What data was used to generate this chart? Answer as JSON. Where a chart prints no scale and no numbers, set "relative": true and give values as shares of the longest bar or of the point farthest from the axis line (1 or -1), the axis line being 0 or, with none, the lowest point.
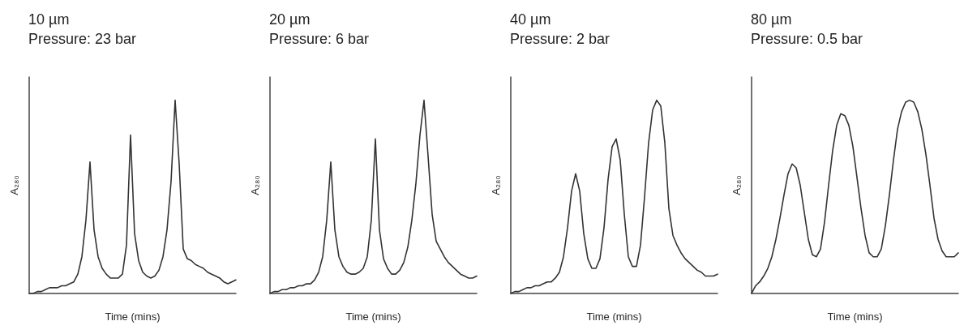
{
  "chart_data": [
    {
      "type": "line",
      "title": "10 µm",
      "subtitle": "Pressure: 23 bar",
      "xlabel": "Time (mins)",
      "ylabel": "A₂₈₀",
      "relative": true,
      "grid": false,
      "line_style": "solid",
      "categories": [
        null,
        null,
        null,
        null,
        null,
        null,
        null,
        null,
        null,
        null,
        null,
        null,
        null,
        null,
        null,
        null,
        null,
        null,
        null,
        null,
        null,
        null,
        null,
        null,
        null,
        null,
        null,
        null,
        null,
        null,
        null,
        null,
        null,
        null,
        null,
        null,
        null,
        null,
        null,
        null,
        null,
        null,
        null,
        null,
        null,
        null,
        null,
        null,
        null,
        null,
        null,
        null
      ],
      "series": [
        {
          "color": "#333333",
          "values": [
            0,
            0,
            0.01,
            0.01,
            0.02,
            0.03,
            0.03,
            0.03,
            0.04,
            0.04,
            0.05,
            0.06,
            0.1,
            0.19,
            0.38,
            0.68,
            0.33,
            0.19,
            0.13,
            0.1,
            0.08,
            0.08,
            0.08,
            0.1,
            0.25,
            0.82,
            0.31,
            0.17,
            0.11,
            0.09,
            0.08,
            0.09,
            0.12,
            0.19,
            0.33,
            0.58,
            1,
            0.67,
            0.23,
            0.18,
            0.17,
            0.15,
            0.14,
            0.13,
            0.11,
            0.1,
            0.09,
            0.08,
            0.06,
            0.05,
            0.06,
            0.07
          ]
        }
      ]
    },
    {
      "type": "line",
      "title": "20 µm",
      "subtitle": "Pressure: 6 bar",
      "xlabel": "Time (mins)",
      "ylabel": "A₂₈₀",
      "relative": true,
      "grid": false,
      "line_style": "solid",
      "categories": [
        null,
        null,
        null,
        null,
        null,
        null,
        null,
        null,
        null,
        null,
        null,
        null,
        null,
        null,
        null,
        null,
        null,
        null,
        null,
        null,
        null,
        null,
        null,
        null,
        null,
        null,
        null,
        null,
        null,
        null,
        null,
        null,
        null,
        null,
        null,
        null,
        null,
        null,
        null,
        null,
        null,
        null,
        null,
        null,
        null,
        null,
        null,
        null,
        null,
        null,
        null,
        null
      ],
      "series": [
        {
          "color": "#333333",
          "values": [
            0,
            0.01,
            0.01,
            0.02,
            0.02,
            0.03,
            0.03,
            0.04,
            0.04,
            0.05,
            0.05,
            0.07,
            0.11,
            0.19,
            0.38,
            0.68,
            0.33,
            0.19,
            0.14,
            0.11,
            0.1,
            0.1,
            0.11,
            0.13,
            0.19,
            0.38,
            0.8,
            0.33,
            0.18,
            0.13,
            0.1,
            0.1,
            0.12,
            0.16,
            0.24,
            0.38,
            0.57,
            0.82,
            1,
            0.71,
            0.41,
            0.27,
            0.23,
            0.19,
            0.16,
            0.14,
            0.12,
            0.1,
            0.09,
            0.08,
            0.08,
            0.09
          ]
        }
      ]
    },
    {
      "type": "line",
      "title": "40 µm",
      "subtitle": "Pressure: 2 bar",
      "xlabel": "Time (mins)",
      "ylabel": "A₂₈₀",
      "relative": true,
      "grid": false,
      "line_style": "solid",
      "categories": [
        null,
        null,
        null,
        null,
        null,
        null,
        null,
        null,
        null,
        null,
        null,
        null,
        null,
        null,
        null,
        null,
        null,
        null,
        null,
        null,
        null,
        null,
        null,
        null,
        null,
        null,
        null,
        null,
        null,
        null,
        null,
        null,
        null,
        null,
        null,
        null,
        null,
        null,
        null,
        null,
        null,
        null,
        null,
        null,
        null,
        null,
        null,
        null,
        null,
        null,
        null,
        null
      ],
      "series": [
        {
          "color": "#333333",
          "values": [
            0,
            0.01,
            0.01,
            0.02,
            0.03,
            0.03,
            0.04,
            0.04,
            0.05,
            0.06,
            0.06,
            0.08,
            0.11,
            0.19,
            0.34,
            0.53,
            0.62,
            0.53,
            0.31,
            0.18,
            0.13,
            0.13,
            0.18,
            0.34,
            0.59,
            0.76,
            0.8,
            0.69,
            0.41,
            0.19,
            0.14,
            0.14,
            0.25,
            0.5,
            0.78,
            0.95,
            1,
            0.97,
            0.78,
            0.44,
            0.3,
            0.25,
            0.21,
            0.18,
            0.16,
            0.14,
            0.12,
            0.11,
            0.09,
            0.09,
            0.09,
            0.1
          ]
        }
      ]
    },
    {
      "type": "line",
      "title": "80 µm",
      "subtitle": "Pressure: 0.5 bar",
      "xlabel": "Time (mins)",
      "ylabel": "A₂₈₀",
      "relative": true,
      "grid": false,
      "line_style": "solid",
      "categories": [
        null,
        null,
        null,
        null,
        null,
        null,
        null,
        null,
        null,
        null,
        null,
        null,
        null,
        null,
        null,
        null,
        null,
        null,
        null,
        null,
        null,
        null,
        null,
        null,
        null,
        null,
        null,
        null,
        null,
        null,
        null,
        null,
        null,
        null,
        null,
        null,
        null,
        null,
        null,
        null,
        null,
        null,
        null,
        null,
        null,
        null,
        null,
        null,
        null,
        null,
        null,
        null
      ],
      "series": [
        {
          "color": "#333333",
          "values": [
            0,
            0.04,
            0.06,
            0.09,
            0.13,
            0.19,
            0.28,
            0.39,
            0.51,
            0.62,
            0.67,
            0.65,
            0.56,
            0.42,
            0.28,
            0.2,
            0.19,
            0.23,
            0.37,
            0.56,
            0.74,
            0.87,
            0.93,
            0.92,
            0.87,
            0.76,
            0.6,
            0.44,
            0.3,
            0.21,
            0.19,
            0.19,
            0.23,
            0.35,
            0.51,
            0.69,
            0.85,
            0.94,
            0.99,
            1,
            0.99,
            0.94,
            0.85,
            0.72,
            0.56,
            0.39,
            0.28,
            0.22,
            0.19,
            0.19,
            0.19,
            0.21
          ]
        }
      ]
    }
  ]
}
